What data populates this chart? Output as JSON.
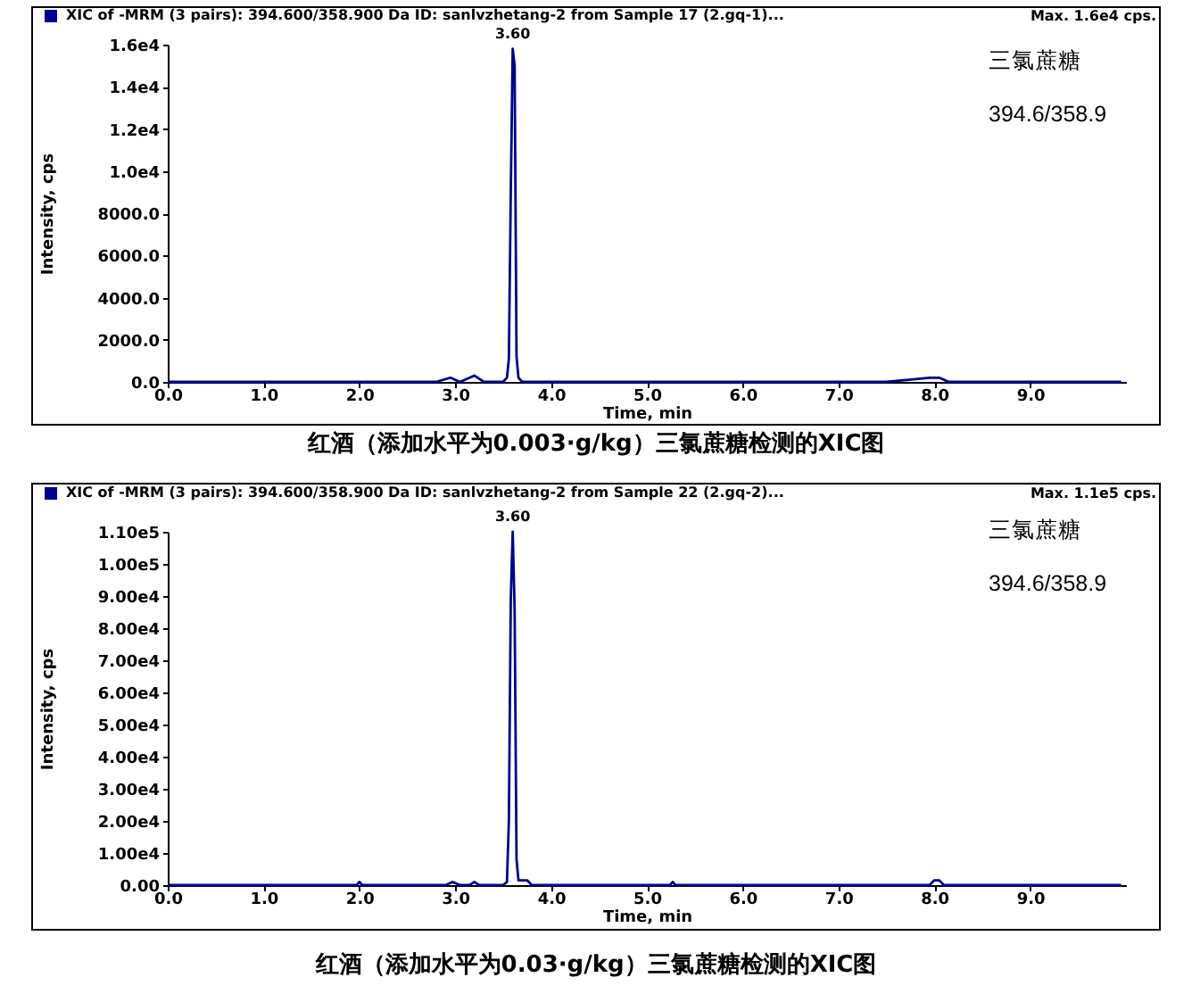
{
  "chart_data": [
    {
      "type": "line",
      "title": "红酒（添加水平为0.003·g/kg）三氯蔗糖检测的XIC图",
      "xlabel": "Time, min",
      "ylabel": "Intensity, cps",
      "xlim": [
        0,
        10
      ],
      "xticks": [
        {
          "value": 0,
          "label": "0.0"
        },
        {
          "value": 1,
          "label": "1.0"
        },
        {
          "value": 2,
          "label": "2.0"
        },
        {
          "value": 3,
          "label": "3.0"
        },
        {
          "value": 4,
          "label": "4.0"
        },
        {
          "value": 5,
          "label": "5.0"
        },
        {
          "value": 6,
          "label": "6.0"
        },
        {
          "value": 7,
          "label": "7.0"
        },
        {
          "value": 8,
          "label": "8.0"
        },
        {
          "value": 9,
          "label": "9.0"
        }
      ],
      "ylim": [
        0,
        16000
      ],
      "yticks": [
        {
          "value": 0,
          "label": "0.0"
        },
        {
          "value": 2000,
          "label": "2000.0"
        },
        {
          "value": 4000,
          "label": "4000.0"
        },
        {
          "value": 6000,
          "label": "6000.0"
        },
        {
          "value": 8000,
          "label": "8000.0"
        },
        {
          "value": 10000,
          "label": "1.0e4"
        },
        {
          "value": 12000,
          "label": "1.2e4"
        },
        {
          "value": 14000,
          "label": "1.4e4"
        },
        {
          "value": 16000,
          "label": "1.6e4"
        }
      ],
      "x": [
        0.0,
        0.4,
        0.8,
        1.2,
        1.6,
        2.0,
        2.4,
        2.8,
        2.95,
        3.05,
        3.2,
        3.3,
        3.5,
        3.54,
        3.56,
        3.58,
        3.6,
        3.62,
        3.64,
        3.66,
        3.7,
        3.8,
        4.5,
        5.5,
        6.5,
        7.5,
        7.95,
        8.05,
        8.15,
        9.0,
        9.95
      ],
      "series": [
        {
          "name": "XIC of -MRM (3 pairs): 394.600/358.900 Da ID: sanlvzhetang-2 from Sample 17 (2.gq-1)...",
          "color": "#000090",
          "values": [
            0,
            0,
            0,
            0,
            0,
            0,
            0,
            0,
            200,
            0,
            300,
            0,
            0,
            200,
            1100,
            9000,
            15800,
            15000,
            1200,
            200,
            0,
            0,
            0,
            0,
            0,
            0,
            200,
            200,
            0,
            0,
            0
          ]
        }
      ],
      "legend": "top left",
      "grid": false,
      "line_style": "solid",
      "annotations": [
        {
          "text": "3.60",
          "x": 3.6,
          "y": 15800
        },
        "Max. 1.6e4 cps.",
        "三氯蔗糖",
        "394.6/358.9"
      ]
    },
    {
      "type": "line",
      "title": "红酒（添加水平为0.03·g/kg）三氯蔗糖检测的XIC图",
      "xlabel": "Time, min",
      "ylabel": "Intensity, cps",
      "xlim": [
        0,
        10
      ],
      "xticks": [
        {
          "value": 0,
          "label": "0.0"
        },
        {
          "value": 1,
          "label": "1.0"
        },
        {
          "value": 2,
          "label": "2.0"
        },
        {
          "value": 3,
          "label": "3.0"
        },
        {
          "value": 4,
          "label": "4.0"
        },
        {
          "value": 5,
          "label": "5.0"
        },
        {
          "value": 6,
          "label": "6.0"
        },
        {
          "value": 7,
          "label": "7.0"
        },
        {
          "value": 8,
          "label": "8.0"
        },
        {
          "value": 9,
          "label": "9.0"
        }
      ],
      "ylim": [
        0,
        110000
      ],
      "yticks": [
        {
          "value": 0,
          "label": "0.00"
        },
        {
          "value": 10000,
          "label": "1.00e4"
        },
        {
          "value": 20000,
          "label": "2.00e4"
        },
        {
          "value": 30000,
          "label": "3.00e4"
        },
        {
          "value": 40000,
          "label": "4.00e4"
        },
        {
          "value": 50000,
          "label": "5.00e4"
        },
        {
          "value": 60000,
          "label": "6.00e4"
        },
        {
          "value": 70000,
          "label": "7.00e4"
        },
        {
          "value": 80000,
          "label": "8.00e4"
        },
        {
          "value": 90000,
          "label": "9.00e4"
        },
        {
          "value": 100000,
          "label": "1.00e5"
        },
        {
          "value": 110000,
          "label": "1.10e5"
        }
      ],
      "x": [
        0.0,
        0.5,
        1.0,
        1.5,
        1.97,
        2.0,
        2.03,
        2.5,
        2.9,
        2.97,
        3.05,
        3.15,
        3.2,
        3.25,
        3.5,
        3.54,
        3.56,
        3.58,
        3.6,
        3.62,
        3.64,
        3.66,
        3.7,
        3.75,
        3.8,
        3.9,
        4.5,
        5.0,
        5.24,
        5.27,
        5.3,
        6.0,
        7.0,
        7.5,
        7.95,
        8.0,
        8.05,
        8.1,
        8.5,
        9.0,
        9.5,
        9.95
      ],
      "series": [
        {
          "name": "XIC of -MRM (3 pairs): 394.600/358.900 Da ID: sanlvzhetang-2 from Sample 22 (2.gq-2)...",
          "color": "#000090",
          "values": [
            0,
            0,
            0,
            0,
            0,
            1000,
            0,
            0,
            0,
            1000,
            0,
            0,
            1000,
            0,
            0,
            1000,
            20000,
            89000,
            110000,
            86000,
            8000,
            1500,
            1500,
            1500,
            0,
            0,
            0,
            0,
            0,
            1000,
            0,
            0,
            0,
            0,
            0,
            1500,
            1500,
            0,
            0,
            0,
            0,
            0
          ]
        }
      ],
      "legend": "top left",
      "grid": false,
      "line_style": "solid",
      "annotations": [
        {
          "text": "3.60",
          "x": 3.6,
          "y": 110000
        },
        "Max. 1.1e5 cps.",
        "三氯蔗糖",
        "394.6/358.9"
      ]
    }
  ]
}
